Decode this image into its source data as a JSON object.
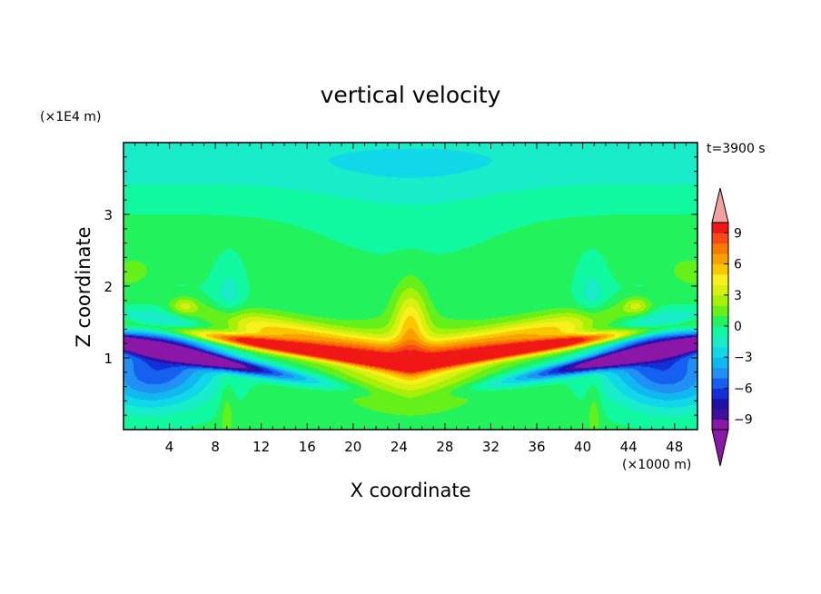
{
  "chart_data": {
    "type": "heatmap",
    "title": "vertical velocity",
    "xlabel": "X coordinate",
    "ylabel": "Z coordinate",
    "x_unit": "(×1000 m)",
    "y_unit": "(×1E4 m)",
    "time_label": "t=3900 s",
    "xlim": [
      0,
      50
    ],
    "ylim": [
      0,
      4
    ],
    "x_ticks": [
      4,
      8,
      12,
      16,
      20,
      24,
      28,
      32,
      36,
      40,
      44,
      48
    ],
    "y_ticks": [
      1,
      2,
      3
    ],
    "colorbar": {
      "levels": [
        -10,
        -9,
        -8,
        -7,
        -6,
        -5,
        -4,
        -3,
        -2,
        -1,
        0,
        1,
        2,
        3,
        4,
        5,
        6,
        7,
        8,
        9,
        10
      ],
      "colors": [
        "#8a17a8",
        "#3f0fa0",
        "#1f10a6",
        "#1330d8",
        "#1560ee",
        "#2090f4",
        "#10b8f0",
        "#10d8e8",
        "#18ecc8",
        "#10f8a0",
        "#22f35c",
        "#66f01a",
        "#a8f008",
        "#d8f010",
        "#f8f01c",
        "#f8c800",
        "#f8a000",
        "#f87800",
        "#f84a14",
        "#f01814"
      ],
      "under_color": "#8a17a8",
      "over_color": "#f4a0a0",
      "tick_values": [
        9,
        6,
        3,
        0,
        -3,
        -6,
        -9
      ],
      "tick_labels": [
        "9",
        "6",
        "3",
        "0",
        "−3",
        "−6",
        "−9"
      ]
    },
    "field_features": [
      {
        "kind": "updraft",
        "x": 15.5,
        "z": 1.1,
        "value": 9
      },
      {
        "kind": "updraft",
        "x": 34.5,
        "z": 1.1,
        "value": 9
      },
      {
        "kind": "updraft",
        "x": 25.0,
        "z": 1.45,
        "value": 4
      },
      {
        "kind": "updraft",
        "x": 5.5,
        "z": 1.7,
        "value": 2
      },
      {
        "kind": "updraft",
        "x": 44.5,
        "z": 1.7,
        "value": 2
      },
      {
        "kind": "updraft",
        "x": 1.5,
        "z": 2.2,
        "value": 1
      },
      {
        "kind": "updraft",
        "x": 48.5,
        "z": 2.2,
        "value": 1
      },
      {
        "kind": "downdraft",
        "x": 3.5,
        "z": 1.1,
        "value": -10
      },
      {
        "kind": "downdraft",
        "x": 46.5,
        "z": 1.1,
        "value": -10
      }
    ]
  }
}
